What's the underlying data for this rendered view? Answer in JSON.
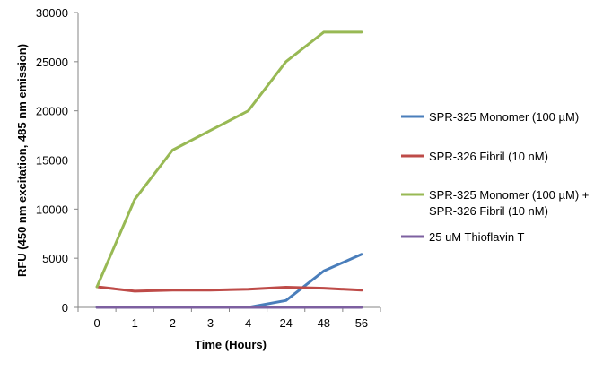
{
  "chart_data": {
    "type": "line",
    "title": "",
    "xlabel": "Time (Hours)",
    "ylabel": "RFU (450 nm excitation, 485 nm emission)",
    "categories": [
      "0",
      "1",
      "2",
      "3",
      "4",
      "24",
      "48",
      "56"
    ],
    "ylim": [
      0,
      30000
    ],
    "yticks": [
      0,
      5000,
      10000,
      15000,
      20000,
      25000,
      30000
    ],
    "ytick_labels": [
      "0",
      "5000",
      "10000",
      "15000",
      "20000",
      "25000",
      "30000"
    ],
    "grid": false,
    "legend_position": "right",
    "series": [
      {
        "name": "SPR-325 Monomer (100 µM)",
        "legend_lines": [
          "SPR-325 Monomer (100 µM)"
        ],
        "color": "#4a7ebb",
        "values": [
          0,
          0,
          0,
          0,
          0,
          700,
          3700,
          5400
        ]
      },
      {
        "name": "SPR-326 Fibril (10 nM)",
        "legend_lines": [
          "SPR-326 Fibril (10 nM)"
        ],
        "color": "#be4b48",
        "values": [
          2100,
          1650,
          1750,
          1750,
          1850,
          2050,
          1950,
          1750
        ]
      },
      {
        "name": "SPR-325 Monomer (100 µM) + SPR-326 Fibril (10 nM)",
        "legend_lines": [
          "SPR-325 Monomer (100 µM) +",
          "SPR-326 Fibril (10 nM)"
        ],
        "color": "#98b954",
        "values": [
          2100,
          11000,
          16000,
          18000,
          20000,
          25000,
          28000,
          28000
        ]
      },
      {
        "name": "25 uM Thioflavin T",
        "legend_lines": [
          "25 uM Thioflavin T"
        ],
        "color": "#7d60a0",
        "values": [
          0,
          0,
          0,
          0,
          0,
          0,
          0,
          0
        ]
      }
    ]
  }
}
